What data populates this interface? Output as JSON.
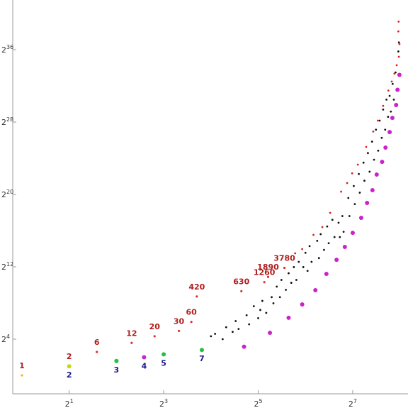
{
  "chart_data": {
    "type": "scatter",
    "xscale": "log2",
    "yscale": "log2",
    "xlim": [
      0.874,
      288
    ],
    "ylim": [
      0.243,
      3100000000000.0
    ],
    "xticks": [
      {
        "value": 2,
        "label": "2",
        "exponent": "1"
      },
      {
        "value": 8,
        "label": "2",
        "exponent": "3"
      },
      {
        "value": 32,
        "label": "2",
        "exponent": "5"
      },
      {
        "value": 128,
        "label": "2",
        "exponent": "7"
      }
    ],
    "yticks": [
      {
        "value": 16,
        "label": "2",
        "exponent": "4"
      },
      {
        "value": 4096,
        "label": "2",
        "exponent": "12"
      },
      {
        "value": 1048576,
        "label": "2",
        "exponent": "20"
      },
      {
        "value": 268435456,
        "label": "2",
        "exponent": "28"
      },
      {
        "value": 68719476736,
        "label": "2",
        "exponent": "36"
      }
    ],
    "series": [
      {
        "x": [
          16,
          17,
          19,
          20,
          22,
          23,
          24,
          27,
          28,
          30,
          32,
          33,
          34,
          36,
          39,
          40,
          42,
          44,
          45,
          48,
          50,
          52,
          54,
          56,
          58,
          62,
          64,
          66,
          68,
          70,
          76,
          78,
          80,
          84,
          88,
          90,
          95,
          98,
          104,
          106,
          110,
          112,
          120,
          122,
          130,
          132,
          140,
          142,
          150,
          152,
          160,
          164,
          170,
          175,
          180,
          186,
          190,
          196,
          200,
          206,
          210,
          215,
          220,
          224,
          230,
          234,
          240,
          244,
          250,
          252
        ],
        "values": [
          20,
          24,
          16,
          40,
          28,
          64,
          35,
          100,
          50,
          200,
          80,
          150,
          300,
          120,
          400,
          250,
          900,
          400,
          1500,
          700,
          2500,
          1200,
          4000,
          1500,
          6000,
          4000,
          12000,
          3000,
          20000,
          6000,
          30000,
          8000,
          50000,
          15000,
          90000,
          25000,
          150000,
          40000,
          120000,
          40000,
          200000,
          60000,
          800000,
          200000,
          2000000,
          500000,
          5000000,
          1200000,
          12000000,
          3000000,
          25000000,
          6000000,
          60000000,
          15000000,
          150000000,
          30000000,
          300000000,
          80000000,
          700000000,
          150000000,
          1500000000,
          400000000,
          2000000000,
          600000000,
          5000000000,
          1500000000,
          12000000000,
          3000000000,
          60000000000,
          120000000000
        ],
        "color": "#111111",
        "size": 1.4
      },
      {
        "x": [
          55,
          61,
          72,
          82,
          92,
          108,
          118,
          127,
          138,
          156,
          173,
          185,
          200,
          216,
          227,
          236,
          244,
          252,
          254,
          250,
          251
        ],
        "values": [
          11500,
          15900,
          47300,
          85900,
          255000,
          1300000,
          2500000,
          5300000,
          10300000,
          40000000,
          130000000,
          300000000,
          930000000,
          3000000000,
          6000000000,
          11000000000,
          21000000000,
          40000000000,
          106000000000,
          280000000000,
          590000000000
        ],
        "color": "#e02020",
        "size": 1.4
      },
      {
        "x": [
          26,
          38,
          50,
          61,
          74,
          87,
          101,
          114,
          128,
          145,
          158,
          171,
          182,
          197,
          207,
          220,
          229,
          242,
          247,
          254
        ],
        "values": [
          9,
          26,
          82,
          229,
          680,
          2380,
          7000,
          18800,
          55500,
          174000,
          546000,
          1450000,
          4800000,
          12700000,
          38000000,
          125000000,
          370000000,
          990000000,
          3200000000,
          10000000000
        ],
        "color": "#cc22cc",
        "size": 3
      },
      {
        "x": [
          1,
          2,
          3,
          5,
          7,
          10,
          12,
          13,
          25,
          35,
          37,
          47
        ],
        "values": [
          1,
          2,
          6,
          12,
          20,
          30,
          60,
          420,
          630,
          1260,
          1890,
          3780
        ],
        "colors": [
          "#f5b800",
          "#c8d800",
          "#e03030",
          "#e03030",
          "#e03030",
          "#e03030",
          "#e03030",
          "#e03030",
          "#e03030",
          "#e03030",
          "#e03030",
          "#e03030"
        ],
        "size": 1.6,
        "label_position": "above",
        "label_color": "#b01c1c"
      },
      {
        "x": [
          2,
          4,
          6,
          8,
          14
        ],
        "values": [
          2,
          3,
          4,
          5,
          7
        ],
        "colors": [
          "#c8d800",
          "#22c040",
          "#cc22cc",
          "#22c040",
          "#22c040"
        ],
        "size": 3,
        "label_position": "below",
        "label_color": "#1a1a8c"
      }
    ]
  }
}
